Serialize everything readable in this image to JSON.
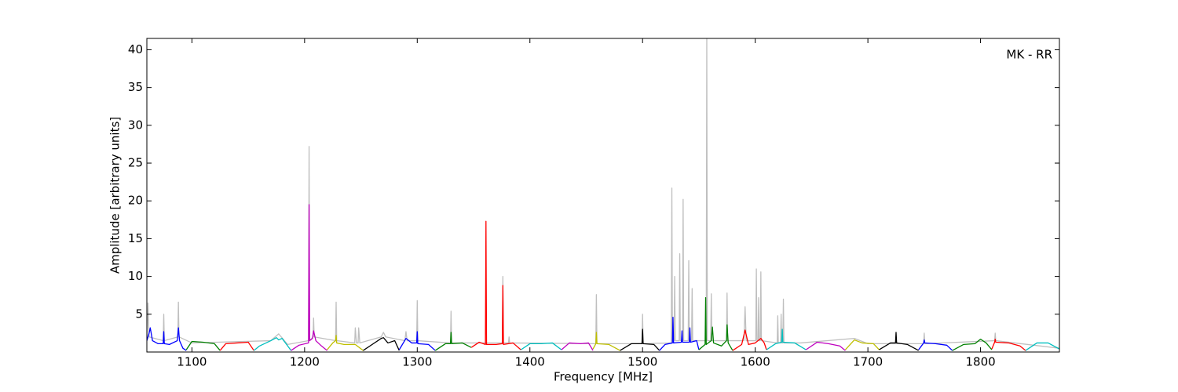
{
  "chart_data": {
    "type": "line",
    "annotation": "MK - RR",
    "xlabel": "Frequency [MHz]",
    "ylabel": "Amplitude [arbitrary units]",
    "xlim": [
      1060,
      1870
    ],
    "ylim": [
      0,
      41.5
    ],
    "xticks": [
      1100,
      1200,
      1300,
      1400,
      1500,
      1600,
      1700,
      1800
    ],
    "yticks": [
      5,
      10,
      15,
      20,
      25,
      30,
      35,
      40
    ],
    "series": [
      {
        "color": "#bfbfbf",
        "x": [
          1060,
          1061,
          1062,
          1074.5,
          1075,
          1075.5,
          1087.5,
          1088,
          1088.5,
          1100,
          1170,
          1177,
          1185,
          1203.5,
          1204,
          1204.5,
          1207.5,
          1208,
          1208.5,
          1227.5,
          1228,
          1228.5,
          1244.5,
          1245,
          1246,
          1247.5,
          1248,
          1249,
          1268,
          1270,
          1272,
          1289,
          1290,
          1291,
          1299.5,
          1300,
          1300.5,
          1329.5,
          1330,
          1330.5,
          1375.5,
          1376,
          1376.5,
          1381,
          1381.5,
          1382,
          1458.5,
          1459,
          1459.5,
          1499.5,
          1500,
          1500.5,
          1525.5,
          1526,
          1526.5,
          1528,
          1528.5,
          1529,
          1532.5,
          1533,
          1533.5,
          1535.5,
          1536,
          1536.5,
          1540.5,
          1541,
          1541.5,
          1543.5,
          1544,
          1544.5,
          1556.5,
          1557,
          1557.5,
          1560.5,
          1561,
          1561.5,
          1574.5,
          1575,
          1575.5,
          1590,
          1591,
          1592,
          1600.5,
          1601,
          1601.5,
          1602.5,
          1603,
          1603.5,
          1604.5,
          1605,
          1605.5,
          1619.5,
          1620,
          1620.5,
          1622.5,
          1623,
          1623.5,
          1624.5,
          1625,
          1625.5,
          1640,
          1688,
          1700,
          1749.5,
          1750,
          1750.5,
          1812.5,
          1813,
          1813.5,
          1870
        ],
        "values": [
          1.5,
          6.5,
          2,
          1.5,
          5,
          1.5,
          2,
          6.6,
          2,
          1.2,
          1.5,
          2.4,
          1,
          1.5,
          27.2,
          1.5,
          2,
          4.5,
          2,
          1.5,
          6.6,
          1.5,
          1.2,
          3.2,
          1.2,
          1.2,
          3.2,
          1.2,
          2,
          2.6,
          2,
          1.5,
          2.7,
          1.5,
          1.5,
          6.8,
          1.5,
          1.2,
          5.4,
          1.2,
          1.2,
          10,
          1.2,
          1.2,
          2,
          1.2,
          1.1,
          7.6,
          1.1,
          1.1,
          5,
          1.1,
          1.2,
          21.7,
          1.5,
          1.5,
          10,
          1.5,
          1.5,
          13,
          1.5,
          1.5,
          20.2,
          1.5,
          1.5,
          12.1,
          1.5,
          1.5,
          8.4,
          1.5,
          1.5,
          41.5,
          1.5,
          1.5,
          7.7,
          1.5,
          1.5,
          7.8,
          1.5,
          1.5,
          6,
          1.5,
          1.5,
          11,
          1.5,
          1.5,
          7.2,
          1.5,
          1.5,
          10.6,
          1.5,
          1.2,
          4.8,
          1.2,
          1.2,
          5,
          1.2,
          1.2,
          7,
          1.2,
          1.2,
          1.8,
          1.1,
          1.1,
          2.5,
          1.1,
          1.5,
          2.5,
          1.5,
          0.5
        ]
      },
      {
        "color": "#0000ff",
        "x": [
          1060,
          1062,
          1063,
          1065,
          1070,
          1074.5,
          1075,
          1075.5,
          1080,
          1087,
          1088,
          1089,
          1092,
          1095
        ],
        "values": [
          1.5,
          2.5,
          3.2,
          1.5,
          1.1,
          1.1,
          2.7,
          1.1,
          1,
          1.5,
          3.2,
          1.5,
          0.5,
          0.2
        ]
      },
      {
        "color": "#008000",
        "x": [
          1095,
          1100,
          1110,
          1120,
          1125
        ],
        "values": [
          0.3,
          1.4,
          1.3,
          1.1,
          0.2
        ]
      },
      {
        "color": "#ff0000",
        "x": [
          1125,
          1130,
          1140,
          1150,
          1155
        ],
        "values": [
          0.2,
          1.1,
          1.2,
          1.3,
          0.2
        ]
      },
      {
        "color": "#00bfbf",
        "x": [
          1155,
          1160,
          1170,
          1175,
          1177,
          1180,
          1185,
          1188
        ],
        "values": [
          0.2,
          0.8,
          1.5,
          1.9,
          1.6,
          1.8,
          0.8,
          0.2
        ]
      },
      {
        "color": "#bf00bf",
        "x": [
          1188,
          1195,
          1203.5,
          1204,
          1204.5,
          1207,
          1208,
          1210,
          1215,
          1220
        ],
        "values": [
          0.2,
          0.9,
          1.2,
          19.5,
          1.5,
          1.8,
          2.8,
          1.5,
          0.8,
          0.2
        ]
      },
      {
        "color": "#bfbf00",
        "x": [
          1220,
          1225,
          1227.5,
          1228,
          1228.5,
          1235,
          1245,
          1252
        ],
        "values": [
          0.3,
          1.2,
          1.5,
          2.2,
          1.2,
          1,
          1,
          0.2
        ]
      },
      {
        "color": "#000000",
        "x": [
          1252,
          1260,
          1268,
          1270,
          1274,
          1280,
          1284
        ],
        "values": [
          0.2,
          1,
          1.8,
          1.9,
          1.2,
          1.5,
          0.2
        ]
      },
      {
        "color": "#0000ff",
        "x": [
          1284,
          1290,
          1295,
          1299.5,
          1300,
          1300.5,
          1310,
          1316
        ],
        "values": [
          0.3,
          1.8,
          1.2,
          1.2,
          2.7,
          1.1,
          1,
          0.2
        ]
      },
      {
        "color": "#008000",
        "x": [
          1316,
          1325,
          1329.5,
          1330,
          1330.5,
          1340,
          1348
        ],
        "values": [
          0.2,
          1.1,
          1.1,
          2.6,
          1.1,
          1.2,
          0.6
        ]
      },
      {
        "color": "#ff0000",
        "x": [
          1348,
          1355,
          1360.5,
          1361,
          1361.5,
          1370,
          1375.5,
          1376,
          1376.5,
          1385,
          1392
        ],
        "values": [
          0.6,
          1.3,
          1,
          17.3,
          1,
          1,
          1.1,
          8.8,
          1,
          1.2,
          0.3
        ]
      },
      {
        "color": "#00bfbf",
        "x": [
          1392,
          1400,
          1410,
          1420,
          1428
        ],
        "values": [
          0.3,
          1.1,
          1.1,
          1.2,
          0.3
        ]
      },
      {
        "color": "#bf00bf",
        "x": [
          1428,
          1435,
          1445,
          1452,
          1456
        ],
        "values": [
          0.3,
          1.2,
          1.1,
          1.2,
          0.2
        ]
      },
      {
        "color": "#bfbf00",
        "x": [
          1456,
          1458.5,
          1459,
          1459.5,
          1470,
          1480
        ],
        "values": [
          0.4,
          1.1,
          2.6,
          1.1,
          1,
          0.2
        ]
      },
      {
        "color": "#000000",
        "x": [
          1480,
          1490,
          1499.5,
          1500,
          1500.5,
          1510,
          1515
        ],
        "values": [
          0.2,
          1.1,
          1.1,
          3,
          1.1,
          1,
          0.2
        ]
      },
      {
        "color": "#0000ff",
        "x": [
          1515,
          1520,
          1526.5,
          1527,
          1527.5,
          1534.5,
          1535,
          1535.5,
          1541.5,
          1542,
          1542.5,
          1548,
          1550
        ],
        "values": [
          0.2,
          1,
          1.2,
          4.6,
          1.2,
          1.3,
          2.8,
          1.3,
          1.3,
          3.2,
          1.3,
          1.5,
          0.3
        ]
      },
      {
        "color": "#008000",
        "x": [
          1550,
          1555.5,
          1556,
          1556.5,
          1561,
          1562,
          1563,
          1570,
          1574.5,
          1575,
          1576,
          1580
        ],
        "values": [
          0.3,
          1,
          7.2,
          1,
          1.5,
          3.3,
          1.2,
          0.8,
          1.5,
          3.6,
          1.2,
          0.2
        ]
      },
      {
        "color": "#ff0000",
        "x": [
          1580,
          1588,
          1591,
          1594,
          1600,
          1605,
          1608,
          1610
        ],
        "values": [
          0.2,
          1,
          2.9,
          1,
          1.2,
          1.8,
          1.2,
          0.3
        ]
      },
      {
        "color": "#00bfbf",
        "x": [
          1610,
          1618,
          1623.5,
          1624,
          1624.5,
          1635,
          1645
        ],
        "values": [
          0.3,
          1.1,
          1.3,
          3,
          1.3,
          1.2,
          0.3
        ]
      },
      {
        "color": "#bf00bf",
        "x": [
          1645,
          1655,
          1665,
          1675,
          1680
        ],
        "values": [
          0.3,
          1.3,
          1.1,
          0.8,
          0.2
        ]
      },
      {
        "color": "#bfbf00",
        "x": [
          1680,
          1688,
          1695,
          1705,
          1710
        ],
        "values": [
          0.3,
          1.6,
          1.2,
          1.1,
          0.3
        ]
      },
      {
        "color": "#000000",
        "x": [
          1710,
          1720,
          1724.5,
          1725,
          1725.5,
          1735,
          1745
        ],
        "values": [
          0.3,
          1.2,
          1.2,
          2.6,
          1.2,
          1,
          0.2
        ]
      },
      {
        "color": "#0000ff",
        "x": [
          1745,
          1749.5,
          1750,
          1750.5,
          1760,
          1770,
          1775
        ],
        "values": [
          0.3,
          1.2,
          1.6,
          1.2,
          1.1,
          0.9,
          0.2
        ]
      },
      {
        "color": "#008000",
        "x": [
          1775,
          1785,
          1795,
          1800,
          1805,
          1810
        ],
        "values": [
          0.2,
          1,
          1.1,
          1.7,
          1.2,
          0.3
        ]
      },
      {
        "color": "#ff0000",
        "x": [
          1810,
          1812.5,
          1813,
          1813.5,
          1825,
          1835,
          1840
        ],
        "values": [
          0.4,
          1.3,
          1.7,
          1.3,
          1.2,
          0.8,
          0.2
        ]
      },
      {
        "color": "#00bfbf",
        "x": [
          1840,
          1850,
          1860,
          1870
        ],
        "values": [
          0.2,
          1.2,
          1.2,
          0.4
        ]
      }
    ]
  }
}
